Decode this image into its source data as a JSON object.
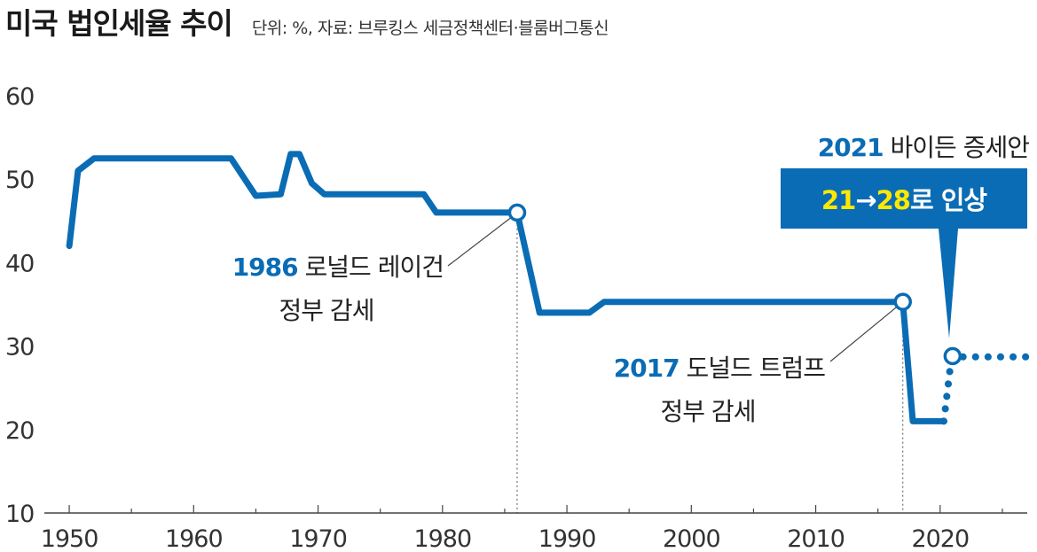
{
  "header": {
    "title": "미국 법인세율 추이",
    "subtitle": "단위: %, 자료: 브루킹스 세금정책센터·블룸버그통신"
  },
  "colors": {
    "line": "#0a6cb4",
    "box_bg": "#0a6cb4",
    "box_text": "#ffffff",
    "box_highlight": "#ffe800",
    "axis": "#444444",
    "guide": "#555555"
  },
  "chart_data": {
    "type": "line",
    "title": "미국 법인세율 추이",
    "xlabel": "",
    "ylabel": "",
    "unit": "%",
    "xlim": [
      1948,
      2027
    ],
    "ylim": [
      10,
      60
    ],
    "xticks": [
      1950,
      1960,
      1970,
      1980,
      1990,
      2000,
      2010,
      2020
    ],
    "yticks": [
      10,
      20,
      30,
      40,
      50,
      60
    ],
    "grid": false,
    "series": [
      {
        "style": "solid",
        "points": [
          [
            1950,
            42
          ],
          [
            1950.7,
            51
          ],
          [
            1952,
            52.5
          ],
          [
            1963,
            52.5
          ],
          [
            1965,
            48
          ],
          [
            1967,
            48.2
          ],
          [
            1967.8,
            53
          ],
          [
            1968.5,
            53
          ],
          [
            1969.5,
            49.5
          ],
          [
            1970.5,
            48.2
          ],
          [
            1978.5,
            48.2
          ],
          [
            1979.5,
            46
          ],
          [
            1986,
            46
          ],
          [
            1987.8,
            34
          ],
          [
            1991.8,
            34
          ],
          [
            1993,
            35.3
          ],
          [
            2017,
            35.3
          ],
          [
            2017.8,
            21
          ],
          [
            2020.3,
            21
          ]
        ]
      },
      {
        "style": "dotted",
        "points": [
          [
            2020.3,
            21
          ],
          [
            2020.9,
            28.5
          ],
          [
            2021.5,
            28.7
          ],
          [
            2027,
            28.7
          ]
        ]
      }
    ],
    "markers": [
      {
        "x": 1986,
        "y": 46
      },
      {
        "x": 2017,
        "y": 35.3
      },
      {
        "x": 2021,
        "y": 28.8
      }
    ],
    "guides": [
      1986,
      2017
    ],
    "annotations": [
      {
        "year": "1986",
        "line1_rest": " 로널드 레이건",
        "line2": "정부 감세"
      },
      {
        "year": "2017",
        "line1_rest": " 도널드 트럼프",
        "line2": "정부 감세"
      },
      {
        "year": "2021",
        "line1_rest": " 바이든 증세안",
        "box_from": "21",
        "box_arrow": "→",
        "box_to": "28",
        "box_rest": "로 인상"
      }
    ]
  }
}
